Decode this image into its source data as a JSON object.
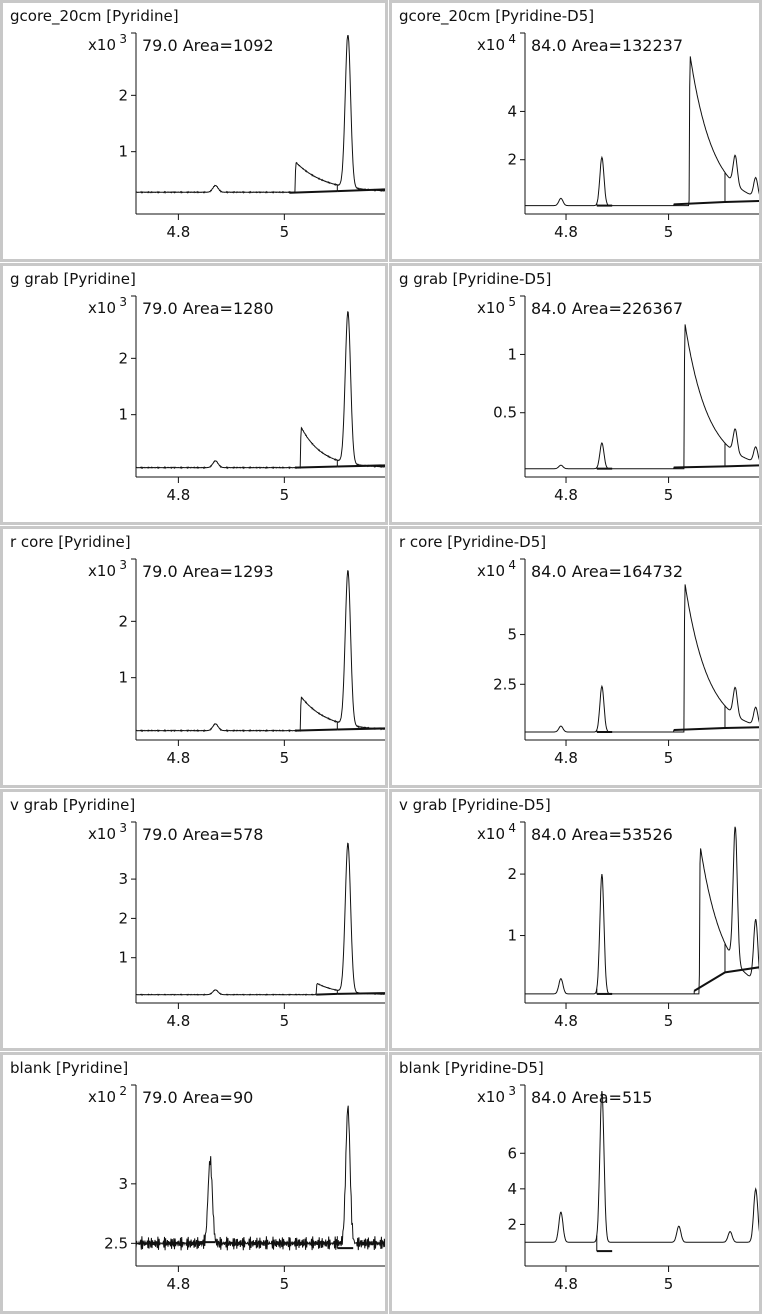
{
  "chart_data": [
    {
      "type": "line",
      "title": "gcore_20cm [Pyridine]",
      "annotation": "79.0 Area=1092",
      "y_exponent": "3",
      "ylim": [
        0,
        3.0
      ],
      "y_ticks": [
        1,
        2
      ],
      "y_tick_labels": [
        "1",
        "2"
      ],
      "xlim": [
        4.72,
        5.19
      ],
      "x_ticks": [
        4.8,
        5
      ],
      "x_tick_labels": [
        "4.8",
        "5"
      ],
      "peaks": [
        {
          "x": 4.87,
          "h": 0.12,
          "w": 0.005
        },
        {
          "x": 5.02,
          "h": 0.55,
          "w": 0.005,
          "tail": 0.055
        },
        {
          "x": 5.12,
          "h": 2.75,
          "w": 0.005
        }
      ],
      "baseline": 0.28,
      "noise": 0.01,
      "integration": [
        [
          5.01,
          0.27,
          5.1,
          0.3
        ],
        [
          5.1,
          0.3,
          5.19,
          0.33
        ]
      ]
    },
    {
      "type": "line",
      "title": "gcore_20cm [Pyridine-D5]",
      "annotation": "84.0 Area=132237",
      "y_exponent": "4",
      "ylim": [
        0,
        7.0
      ],
      "y_ticks": [
        2,
        4
      ],
      "y_tick_labels": [
        "2",
        "4"
      ],
      "xlim": [
        4.72,
        5.19
      ],
      "x_ticks": [
        4.8,
        5
      ],
      "x_tick_labels": [
        "4.8",
        "5"
      ],
      "peaks": [
        {
          "x": 4.79,
          "h": 0.3,
          "w": 0.004
        },
        {
          "x": 4.87,
          "h": 2.0,
          "w": 0.004
        },
        {
          "x": 5.04,
          "h": 6.5,
          "w": 0.002,
          "tail": 0.045
        },
        {
          "x": 5.13,
          "h": 1.2,
          "w": 0.004
        },
        {
          "x": 5.17,
          "h": 0.8,
          "w": 0.004
        }
      ],
      "baseline": 0.1,
      "noise": 0.0,
      "integration": [
        [
          4.86,
          0.1,
          4.89,
          0.1
        ],
        [
          5.01,
          0.15,
          5.11,
          0.25
        ],
        [
          5.11,
          0.25,
          5.19,
          0.3
        ]
      ]
    },
    {
      "type": "line",
      "title": "g grab [Pyridine]",
      "annotation": "79.0 Area=1280",
      "y_exponent": "3",
      "ylim": [
        0,
        3.0
      ],
      "y_ticks": [
        1,
        2
      ],
      "y_tick_labels": [
        "1",
        "2"
      ],
      "xlim": [
        4.72,
        5.19
      ],
      "x_ticks": [
        4.8,
        5
      ],
      "x_tick_labels": [
        "4.8",
        "5"
      ],
      "peaks": [
        {
          "x": 4.87,
          "h": 0.12,
          "w": 0.005
        },
        {
          "x": 5.03,
          "h": 0.75,
          "w": 0.004,
          "tail": 0.04
        },
        {
          "x": 5.12,
          "h": 2.7,
          "w": 0.005
        }
      ],
      "baseline": 0.06,
      "noise": 0.01,
      "integration": [
        [
          5.02,
          0.06,
          5.1,
          0.08
        ],
        [
          5.1,
          0.08,
          5.19,
          0.1
        ]
      ]
    },
    {
      "type": "line",
      "title": "g grab [Pyridine-D5]",
      "annotation": "84.0 Area=226367",
      "y_exponent": "5",
      "ylim": [
        0,
        1.45
      ],
      "y_ticks": [
        0.5,
        1
      ],
      "y_tick_labels": [
        "0.5",
        "1"
      ],
      "xlim": [
        4.72,
        5.19
      ],
      "x_ticks": [
        4.8,
        5
      ],
      "x_tick_labels": [
        "4.8",
        "5"
      ],
      "peaks": [
        {
          "x": 4.79,
          "h": 0.03,
          "w": 0.004
        },
        {
          "x": 4.87,
          "h": 0.22,
          "w": 0.004
        },
        {
          "x": 5.03,
          "h": 1.3,
          "w": 0.002,
          "tail": 0.045
        },
        {
          "x": 5.13,
          "h": 0.2,
          "w": 0.004
        },
        {
          "x": 5.17,
          "h": 0.13,
          "w": 0.004
        }
      ],
      "baseline": 0.02,
      "noise": 0.0,
      "integration": [
        [
          4.86,
          0.02,
          4.89,
          0.02
        ],
        [
          5.01,
          0.03,
          5.11,
          0.04
        ],
        [
          5.11,
          0.04,
          5.19,
          0.05
        ]
      ]
    },
    {
      "type": "line",
      "title": "r core [Pyridine]",
      "annotation": "79.0 Area=1293",
      "y_exponent": "3",
      "ylim": [
        0,
        3.0
      ],
      "y_ticks": [
        1,
        2
      ],
      "y_tick_labels": [
        "1",
        "2"
      ],
      "xlim": [
        4.72,
        5.19
      ],
      "x_ticks": [
        4.8,
        5
      ],
      "x_tick_labels": [
        "4.8",
        "5"
      ],
      "peaks": [
        {
          "x": 4.87,
          "h": 0.12,
          "w": 0.005
        },
        {
          "x": 5.03,
          "h": 0.62,
          "w": 0.004,
          "tail": 0.05
        },
        {
          "x": 5.12,
          "h": 2.75,
          "w": 0.005
        }
      ],
      "baseline": 0.06,
      "noise": 0.01,
      "integration": [
        [
          5.02,
          0.06,
          5.1,
          0.08
        ],
        [
          5.1,
          0.08,
          5.19,
          0.1
        ]
      ]
    },
    {
      "type": "line",
      "title": "r core [Pyridine-D5]",
      "annotation": "84.0 Area=164732",
      "y_exponent": "4",
      "ylim": [
        0,
        8.5
      ],
      "y_ticks": [
        2.5,
        5
      ],
      "y_tick_labels": [
        "2.5",
        "5"
      ],
      "xlim": [
        4.72,
        5.19
      ],
      "x_ticks": [
        4.8,
        5
      ],
      "x_tick_labels": [
        "4.8",
        "5"
      ],
      "peaks": [
        {
          "x": 4.79,
          "h": 0.3,
          "w": 0.004
        },
        {
          "x": 4.87,
          "h": 2.3,
          "w": 0.004
        },
        {
          "x": 5.03,
          "h": 7.8,
          "w": 0.002,
          "tail": 0.045
        },
        {
          "x": 5.13,
          "h": 1.4,
          "w": 0.004
        },
        {
          "x": 5.17,
          "h": 0.9,
          "w": 0.004
        }
      ],
      "baseline": 0.1,
      "noise": 0.0,
      "integration": [
        [
          4.86,
          0.1,
          4.89,
          0.1
        ],
        [
          5.01,
          0.2,
          5.11,
          0.3
        ],
        [
          5.11,
          0.3,
          5.19,
          0.35
        ]
      ]
    },
    {
      "type": "line",
      "title": "v grab [Pyridine]",
      "annotation": "79.0 Area=578",
      "y_exponent": "3",
      "ylim": [
        0,
        4.3
      ],
      "y_ticks": [
        1,
        2,
        3
      ],
      "y_tick_labels": [
        "1",
        "2",
        "3"
      ],
      "xlim": [
        4.72,
        5.19
      ],
      "x_ticks": [
        4.8,
        5
      ],
      "x_tick_labels": [
        "4.8",
        "5"
      ],
      "peaks": [
        {
          "x": 4.87,
          "h": 0.12,
          "w": 0.005
        },
        {
          "x": 5.06,
          "h": 0.3,
          "w": 0.004,
          "tail": 0.04
        },
        {
          "x": 5.12,
          "h": 3.8,
          "w": 0.005
        }
      ],
      "baseline": 0.06,
      "noise": 0.01,
      "integration": [
        [
          5.06,
          0.06,
          5.1,
          0.08
        ],
        [
          5.1,
          0.08,
          5.19,
          0.1
        ]
      ]
    },
    {
      "type": "line",
      "title": "v grab [Pyridine-D5]",
      "annotation": "84.0 Area=53526",
      "y_exponent": "4",
      "ylim": [
        0,
        2.75
      ],
      "y_ticks": [
        1,
        2
      ],
      "y_tick_labels": [
        "1",
        "2"
      ],
      "xlim": [
        4.72,
        5.19
      ],
      "x_ticks": [
        4.8,
        5
      ],
      "x_tick_labels": [
        "4.8",
        "5"
      ],
      "peaks": [
        {
          "x": 4.79,
          "h": 0.25,
          "w": 0.004
        },
        {
          "x": 4.87,
          "h": 1.95,
          "w": 0.004
        },
        {
          "x": 5.06,
          "h": 2.5,
          "w": 0.002,
          "tail": 0.045
        },
        {
          "x": 5.13,
          "h": 2.2,
          "w": 0.004
        },
        {
          "x": 5.17,
          "h": 1.0,
          "w": 0.004
        }
      ],
      "baseline": 0.05,
      "noise": 0.0,
      "integration": [
        [
          4.86,
          0.05,
          4.89,
          0.05
        ],
        [
          5.05,
          0.1,
          5.11,
          0.4
        ],
        [
          5.11,
          0.4,
          5.19,
          0.5
        ]
      ]
    },
    {
      "type": "line",
      "title": "blank [Pyridine]",
      "annotation": "79.0 Area=90",
      "y_exponent": "2",
      "ylim": [
        2.36,
        3.78
      ],
      "y_ticks": [
        2.5,
        3
      ],
      "y_tick_labels": [
        "2.5",
        "3"
      ],
      "xlim": [
        4.72,
        5.19
      ],
      "x_ticks": [
        4.8,
        5
      ],
      "x_tick_labels": [
        "4.8",
        "5"
      ],
      "peaks": [
        {
          "x": 4.86,
          "h": 0.7,
          "w": 0.004
        },
        {
          "x": 5.12,
          "h": 1.15,
          "w": 0.004
        }
      ],
      "baseline": 2.5,
      "noise": 0.06,
      "integration": [
        [
          4.84,
          2.51,
          4.87,
          2.51
        ],
        [
          5.1,
          2.46,
          5.13,
          2.46
        ]
      ]
    },
    {
      "type": "line",
      "title": "blank [Pyridine-D5]",
      "annotation": "84.0 Area=515",
      "y_exponent": "3",
      "ylim": [
        0,
        9.5
      ],
      "y_ticks": [
        2,
        4,
        6
      ],
      "y_tick_labels": [
        "2",
        "4",
        "6"
      ],
      "xlim": [
        4.72,
        5.19
      ],
      "x_ticks": [
        4.8,
        5
      ],
      "x_tick_labels": [
        "4.8",
        "5"
      ],
      "peaks": [
        {
          "x": 4.79,
          "h": 1.7,
          "w": 0.004
        },
        {
          "x": 4.87,
          "h": 8.5,
          "w": 0.004
        },
        {
          "x": 5.02,
          "h": 0.9,
          "w": 0.004
        },
        {
          "x": 5.12,
          "h": 0.6,
          "w": 0.004
        },
        {
          "x": 5.17,
          "h": 3.0,
          "w": 0.004
        }
      ],
      "baseline": 1.0,
      "noise": 0.0,
      "integration": [
        [
          4.86,
          0.5,
          4.89,
          0.5
        ]
      ]
    }
  ]
}
